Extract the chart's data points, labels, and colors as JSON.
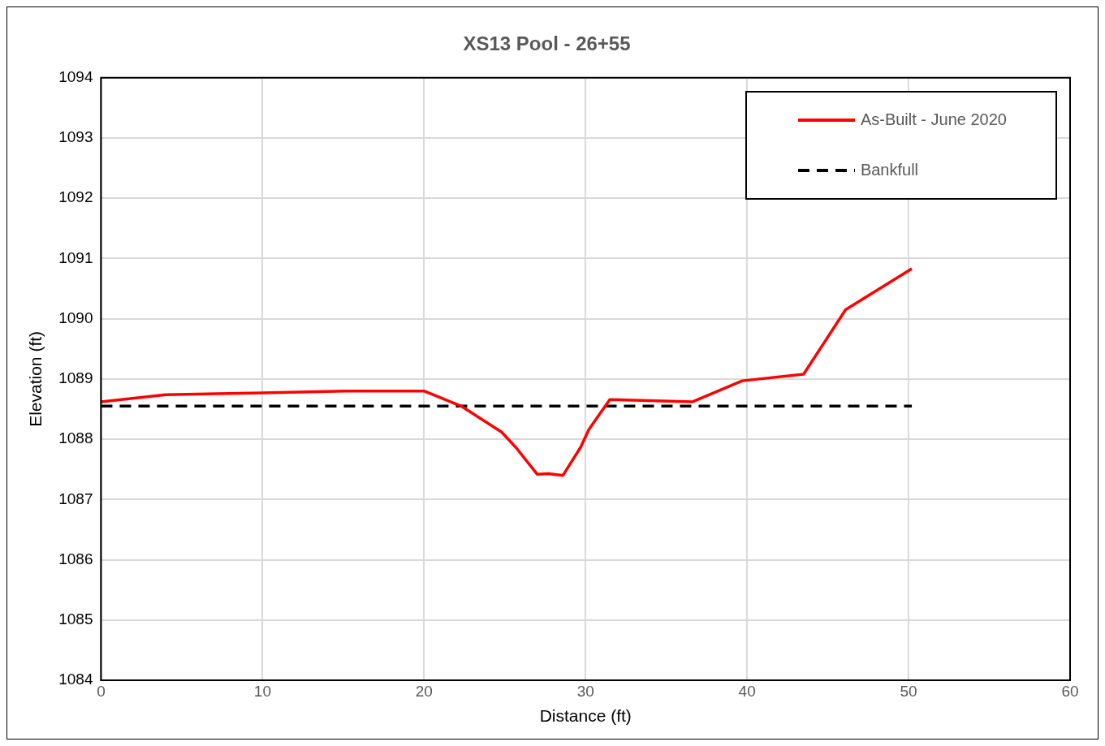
{
  "chart_data": {
    "type": "line",
    "title": "XS13 Pool - 26+55",
    "xlabel": "Distance (ft)",
    "ylabel": "Elevation (ft)",
    "series": [
      {
        "name": "As-Built - June 2020",
        "color": "#ff0000",
        "line_style": "solid",
        "x": [
          0,
          4,
          10,
          15.1,
          20,
          22.3,
          24.8,
          25.7,
          27,
          27.7,
          28.6,
          29.7,
          30.2,
          31.5,
          36.6,
          39.7,
          43.5,
          46.1,
          50.2
        ],
        "values": [
          1088.62,
          1088.74,
          1088.77,
          1088.8,
          1088.8,
          1088.55,
          1088.12,
          1087.86,
          1087.42,
          1087.43,
          1087.4,
          1087.87,
          1088.16,
          1088.66,
          1088.62,
          1088.97,
          1089.08,
          1090.15,
          1090.83
        ]
      },
      {
        "name": "Bankfull",
        "color": "#000000",
        "line_style": "dashed",
        "x": [
          0,
          50.2
        ],
        "values": [
          1088.55,
          1088.55
        ]
      }
    ],
    "xlim": [
      0,
      60
    ],
    "xticks": [
      0,
      10,
      20,
      30,
      40,
      50,
      60
    ],
    "ylim": [
      1084,
      1094
    ],
    "yticks": [
      1084,
      1085,
      1086,
      1087,
      1088,
      1089,
      1090,
      1091,
      1092,
      1093,
      1094
    ],
    "grid": true,
    "legend": "top right",
    "marker": "none"
  }
}
